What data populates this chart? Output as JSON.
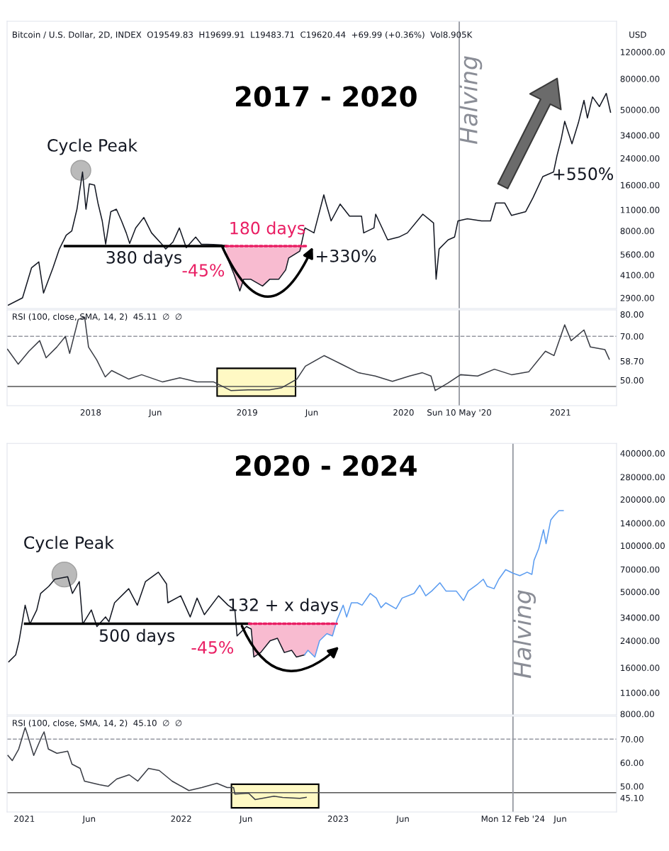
{
  "chart_data": [
    {
      "type": "line",
      "title": "2017 - 2020",
      "subtitle": "Bitcoin / U.S. Dollar, 2D, INDEX  O19549.83  H19699.91  L19483.71  C19620.44  +69.99 (+0.36%)  Vol8.905K",
      "ylabel": "USD",
      "log": true,
      "tick_labels": "y",
      "xlim": [
        "2017-06-20",
        "2021-05-12"
      ],
      "ylim": [
        2470,
        191000
      ],
      "yticks": [
        {
          "value": 2900,
          "label": "2900.00"
        },
        {
          "value": 4100,
          "label": "4100.00"
        },
        {
          "value": 5600,
          "label": "5600.00"
        },
        {
          "value": 8000,
          "label": "8000.00"
        },
        {
          "value": 11000,
          "label": "11000.00"
        },
        {
          "value": 16000,
          "label": "16000.00"
        },
        {
          "value": 24000,
          "label": "24000.00"
        },
        {
          "value": 34000,
          "label": "34000.00"
        },
        {
          "value": 50000,
          "label": "50000.00"
        },
        {
          "value": 80000,
          "label": "80000.00"
        },
        {
          "value": 120000,
          "label": "120000.00"
        }
      ],
      "series": [
        {
          "color": "#131722",
          "x": [
            "2017-06-23",
            "2017-07-26",
            "2017-08-16",
            "2017-09-02",
            "2017-09-13",
            "2017-10-05",
            "2017-10-20",
            "2017-11-05",
            "2017-11-18",
            "2017-11-30",
            "2017-12-05",
            "2017-12-13",
            "2017-12-21",
            "2017-12-29",
            "2018-01-10",
            "2018-01-18",
            "2018-01-28",
            "2018-02-05",
            "2018-02-17",
            "2018-03-02",
            "2018-03-14",
            "2018-03-25",
            "2018-04-02",
            "2018-04-16",
            "2018-05-05",
            "2018-05-23",
            "2018-06-16",
            "2018-06-25",
            "2018-07-12",
            "2018-07-27",
            "2018-08-12",
            "2018-09-03",
            "2018-09-16",
            "2018-10-14",
            "2018-11-04",
            "2018-11-16",
            "2018-12-02",
            "2018-12-15",
            "2018-12-24",
            "2019-01-09",
            "2019-02-06",
            "2019-02-23",
            "2019-03-16",
            "2019-04-01",
            "2019-04-08",
            "2019-05-04",
            "2019-05-16",
            "2019-06-06",
            "2019-06-29",
            "2019-07-04",
            "2019-07-16",
            "2019-08-06",
            "2019-08-28",
            "2019-09-25",
            "2019-09-30",
            "2019-10-24",
            "2019-10-28",
            "2019-11-25",
            "2019-12-21",
            "2020-01-10",
            "2020-02-15",
            "2020-03-11",
            "2020-03-17",
            "2020-03-24",
            "2020-04-14",
            "2020-04-29",
            "2020-05-07",
            "2020-05-29",
            "2020-07-01",
            "2020-07-22",
            "2020-08-03",
            "2020-08-24",
            "2020-09-09",
            "2020-10-12",
            "2020-10-29",
            "2020-11-21",
            "2020-12-16",
            "2020-12-24",
            "2021-01-03",
            "2021-01-11",
            "2021-01-28",
            "2021-02-12",
            "2021-02-25",
            "2021-03-05",
            "2021-03-17",
            "2021-04-02",
            "2021-04-18",
            "2021-04-28"
          ],
          "values": [
            2600,
            2900,
            4570,
            5000,
            3120,
            4570,
            6080,
            7500,
            8000,
            11100,
            13800,
            19500,
            11100,
            16300,
            16000,
            12200,
            9300,
            6550,
            10700,
            11100,
            9300,
            7760,
            6620,
            8360,
            9800,
            7760,
            6550,
            6080,
            6760,
            8360,
            6200,
            7280,
            6550,
            6500,
            6450,
            5300,
            4110,
            3220,
            3850,
            3850,
            3470,
            3850,
            3850,
            4430,
            5300,
            5890,
            8360,
            7760,
            13800,
            12200,
            9300,
            12000,
            10000,
            10000,
            7760,
            8360,
            10300,
            6980,
            7280,
            7760,
            10300,
            9020,
            3850,
            6080,
            6980,
            7280,
            9300,
            9600,
            9300,
            9300,
            12200,
            12200,
            10100,
            10700,
            13200,
            18200,
            19500,
            24900,
            32200,
            42000,
            29900,
            41100,
            57700,
            44200,
            60800,
            52500,
            64100,
            48200
          ]
        },
        {
          "color": "#000000",
          "x": [
            "2017-11-02",
            "2018-11-12"
          ],
          "values": [
            6350,
            6350
          ]
        },
        {
          "color": "#e91e63",
          "line_style": "dotted",
          "x": [
            "2018-11-12",
            "2019-05-18"
          ],
          "values": [
            6350,
            6350
          ]
        }
      ],
      "ref_lines": [
        {
          "axis": "x",
          "value": "2020-05-10",
          "label": "Halving",
          "color": "#9598a1"
        }
      ],
      "annotations": [
        "Cycle Peak",
        "380 days",
        "180 days",
        "-45%",
        "+330%",
        "+550%"
      ]
    },
    {
      "type": "line",
      "subtitle": "RSI (100, close, SMA, 14, 2)  45.11  ∅  ∅",
      "xlim": [
        "2017-06-20",
        "2021-05-12"
      ],
      "ylim": [
        38.4,
        82
      ],
      "xticks": [
        {
          "value": "2018-01-01",
          "label": "2018"
        },
        {
          "value": "2018-06-01",
          "label": "Jun"
        },
        {
          "value": "2019-01-01",
          "label": "2019"
        },
        {
          "value": "2019-06-01",
          "label": "Jun"
        },
        {
          "value": "2020-01-01",
          "label": "2020"
        },
        {
          "value": "2020-05-10",
          "label": "Sun 10 May '20"
        },
        {
          "value": "2021-01-01",
          "label": "2021"
        }
      ],
      "yticks": [
        {
          "value": 50,
          "label": "50.00"
        },
        {
          "value": 58.7,
          "label": "58.70"
        },
        {
          "value": 70,
          "label": "70.00"
        },
        {
          "value": 80,
          "label": "80.00"
        }
      ],
      "series": [
        {
          "color": "#3a3d45",
          "x": [
            "2017-06-21",
            "2017-07-16",
            "2017-08-10",
            "2017-09-04",
            "2017-09-19",
            "2017-10-14",
            "2017-11-03",
            "2017-11-13",
            "2017-12-03",
            "2017-12-18",
            "2017-12-27",
            "2018-01-15",
            "2018-02-04",
            "2018-02-19",
            "2018-03-31",
            "2018-04-30",
            "2018-06-18",
            "2018-07-28",
            "2018-09-06",
            "2018-10-15",
            "2018-11-24",
            "2019-01-03",
            "2019-02-22",
            "2019-03-23",
            "2019-04-27",
            "2019-05-17",
            "2019-06-30",
            "2019-08-09",
            "2019-09-18",
            "2019-10-27",
            "2019-12-06",
            "2020-01-15",
            "2020-02-14",
            "2020-03-05",
            "2020-03-15",
            "2020-04-13",
            "2020-05-13",
            "2020-06-22",
            "2020-07-31",
            "2020-09-09",
            "2020-10-19",
            "2020-11-27",
            "2020-12-17",
            "2021-01-11",
            "2021-01-26",
            "2021-02-25",
            "2021-03-12",
            "2021-04-15",
            "2021-04-25"
          ],
          "values": [
            64.1,
            57.3,
            63.2,
            68,
            60.2,
            65.1,
            69.9,
            62.2,
            77.7,
            78.7,
            65.1,
            59.3,
            51.5,
            54.4,
            50.5,
            52.5,
            49.2,
            51.1,
            49.2,
            49.2,
            45.3,
            45.6,
            45.6,
            46.6,
            50.5,
            56.4,
            61.2,
            57.3,
            53.4,
            51.9,
            49.5,
            51.9,
            53.4,
            51.9,
            45.3,
            48.6,
            52.5,
            51.9,
            55,
            52.5,
            53.8,
            63.2,
            61.2,
            75.2,
            68,
            72.9,
            65.1,
            63.9,
            59.6
          ]
        }
      ],
      "ref_lines": [
        {
          "axis": "y",
          "value": 70,
          "color": "#9598a1",
          "line_style": "dashed"
        },
        {
          "axis": "y",
          "value": 47.1,
          "color": "#555555",
          "line_style": "solid"
        },
        {
          "axis": "x",
          "value": "2020-05-10",
          "color": "#9598a1",
          "line_style": "solid"
        }
      ],
      "bands": [
        {
          "axis": "x",
          "from": "2018-10-23",
          "to": "2019-04-24",
          "color": "#fff9c4"
        }
      ]
    },
    {
      "type": "line",
      "title": "2020 - 2024",
      "log": true,
      "tick_labels": "y",
      "xlim": [
        "2020-11-22",
        "2024-10-10"
      ],
      "ylim": [
        7890,
        464000
      ],
      "yticks": [
        {
          "value": 8000,
          "label": "8000.00"
        },
        {
          "value": 11000,
          "label": "11000.00"
        },
        {
          "value": 16000,
          "label": "16000.00"
        },
        {
          "value": 24000,
          "label": "24000.00"
        },
        {
          "value": 34000,
          "label": "34000.00"
        },
        {
          "value": 50000,
          "label": "50000.00"
        },
        {
          "value": 70000,
          "label": "70000.00"
        },
        {
          "value": 100000,
          "label": "100000.00"
        },
        {
          "value": 140000,
          "label": "140000.00"
        },
        {
          "value": 200000,
          "label": "200000.00"
        },
        {
          "value": 280000,
          "label": "280000.00"
        },
        {
          "value": 400000,
          "label": "400000.00"
        }
      ],
      "series": [
        {
          "color": "#131722",
          "x": [
            "2020-11-26",
            "2020-12-12",
            "2020-12-20",
            "2021-01-03",
            "2021-01-14",
            "2021-01-30",
            "2021-02-08",
            "2021-02-27",
            "2021-03-13",
            "2021-04-12",
            "2021-04-23",
            "2021-05-09",
            "2021-05-17",
            "2021-06-06",
            "2021-06-19",
            "2021-07-09",
            "2021-07-17",
            "2021-07-30",
            "2021-09-01",
            "2021-09-21",
            "2021-10-10",
            "2021-11-09",
            "2021-11-28",
            "2021-12-01",
            "2021-12-31",
            "2022-01-22",
            "2022-02-07",
            "2022-02-24",
            "2022-03-29",
            "2022-04-20",
            "2022-05-06",
            "2022-05-11",
            "2022-06-02",
            "2022-06-13",
            "2022-06-19",
            "2022-07-05",
            "2022-07-27",
            "2022-08-13",
            "2022-08-29",
            "2022-09-15",
            "2022-09-26",
            "2022-10-15"
          ],
          "values": [
            17500,
            19400,
            24000,
            40900,
            30800,
            38100,
            48800,
            54300,
            60400,
            62700,
            48800,
            58300,
            30800,
            38100,
            29700,
            34300,
            31900,
            42400,
            52400,
            40900,
            58300,
            67100,
            56200,
            42400,
            47100,
            34300,
            45500,
            35500,
            47100,
            40900,
            38100,
            25800,
            29700,
            28600,
            18800,
            20100,
            24000,
            24900,
            20100,
            20800,
            18800,
            19400
          ]
        },
        {
          "color": "#5b9cf0",
          "x": [
            "2022-10-15",
            "2022-10-23",
            "2022-11-08",
            "2022-11-19",
            "2022-12-06",
            "2022-12-19",
            "2022-12-30",
            "2023-01-13",
            "2023-01-21",
            "2023-02-01",
            "2023-02-15",
            "2023-02-26",
            "2023-03-17",
            "2023-03-31",
            "2023-04-11",
            "2023-04-22",
            "2023-05-16",
            "2023-05-30",
            "2023-06-27",
            "2023-07-10",
            "2023-07-24",
            "2023-08-07",
            "2023-08-26",
            "2023-09-09",
            "2023-10-03",
            "2023-10-20",
            "2023-10-31",
            "2023-11-22",
            "2023-12-05",
            "2023-12-14",
            "2023-12-30",
            "2024-01-10",
            "2024-01-26",
            "2024-02-12",
            "2024-02-28",
            "2024-03-16",
            "2024-03-27",
            "2024-04-01",
            "2024-04-12",
            "2024-04-23",
            "2024-04-29",
            "2024-05-10",
            "2024-05-18",
            "2024-05-29",
            "2024-06-08"
          ],
          "values": [
            19400,
            20800,
            18800,
            24000,
            26700,
            25800,
            33000,
            40900,
            34300,
            42400,
            42400,
            40900,
            48800,
            45500,
            39400,
            42400,
            38800,
            45500,
            48800,
            55200,
            47100,
            50600,
            57300,
            50600,
            50600,
            43900,
            50600,
            56200,
            60400,
            54300,
            52400,
            60400,
            69700,
            66100,
            63700,
            67100,
            64900,
            80200,
            95700,
            127000,
            103000,
            147000,
            157000,
            169000,
            169000
          ]
        },
        {
          "color": "#000000",
          "x": [
            "2021-01-03",
            "2022-06-08"
          ],
          "values": [
            31000,
            31000
          ]
        },
        {
          "color": "#e91e63",
          "line_style": "dotted",
          "x": [
            "2022-06-08",
            "2022-12-29"
          ],
          "values": [
            31000,
            31000
          ]
        }
      ],
      "ref_lines": [
        {
          "axis": "x",
          "value": "2024-02-12",
          "label": "Halving",
          "color": "#9598a1"
        }
      ],
      "annotations": [
        "Cycle Peak",
        "500 days",
        "132 + x days",
        "-45%"
      ]
    },
    {
      "type": "line",
      "subtitle": "RSI (100, close, SMA, 14, 2)  45.10  ∅  ∅",
      "xlim": [
        "2020-11-22",
        "2024-10-10"
      ],
      "ylim": [
        39.1,
        79.7
      ],
      "xticks": [
        {
          "value": "2021-01-01",
          "label": "2021"
        },
        {
          "value": "2021-06-01",
          "label": "Jun"
        },
        {
          "value": "2022-01-01",
          "label": "2022"
        },
        {
          "value": "2022-06-01",
          "label": "Jun"
        },
        {
          "value": "2023-01-01",
          "label": "2023"
        },
        {
          "value": "2023-06-01",
          "label": "Jun"
        },
        {
          "value": "2024-02-12",
          "label": "Mon 12 Feb '24"
        },
        {
          "value": "2024-06-01",
          "label": "Jun"
        }
      ],
      "yticks": [
        {
          "value": 45.1,
          "label": "45.10"
        },
        {
          "value": 50,
          "label": "50.00"
        },
        {
          "value": 60,
          "label": "60.00"
        },
        {
          "value": 70,
          "label": "70.00"
        }
      ],
      "series": [
        {
          "color": "#3a3d45",
          "x": [
            "2020-11-24",
            "2020-12-04",
            "2020-12-19",
            "2021-01-03",
            "2021-01-08",
            "2021-01-23",
            "2021-02-11",
            "2021-02-16",
            "2021-02-26",
            "2021-03-18",
            "2021-04-12",
            "2021-04-22",
            "2021-05-11",
            "2021-05-21",
            "2021-06-25",
            "2021-07-15",
            "2021-08-04",
            "2021-09-02",
            "2021-09-22",
            "2021-10-17",
            "2021-11-11",
            "2021-12-11",
            "2022-01-19",
            "2022-02-18",
            "2022-03-25",
            "2022-04-18",
            "2022-05-03",
            "2022-05-06",
            "2022-06-07",
            "2022-06-22",
            "2022-08-05",
            "2022-08-25",
            "2022-10-04",
            "2022-10-19"
          ],
          "values": [
            63.1,
            60.9,
            65.8,
            74.9,
            72.2,
            63.1,
            71.3,
            73.1,
            65.8,
            64,
            64.9,
            59.4,
            57.6,
            52.2,
            50.7,
            50,
            53.1,
            54.9,
            52.2,
            57.6,
            56.7,
            52.2,
            48.2,
            49.5,
            51.3,
            49.5,
            49.5,
            46.7,
            47.1,
            44.4,
            45.8,
            45.3,
            44.9,
            45.3
          ]
        }
      ],
      "ref_lines": [
        {
          "axis": "y",
          "value": 70,
          "color": "#9598a1",
          "line_style": "dashed"
        },
        {
          "axis": "y",
          "value": 47.3,
          "color": "#555555",
          "line_style": "solid"
        },
        {
          "axis": "x",
          "value": "2024-02-12",
          "color": "#9598a1",
          "line_style": "solid"
        }
      ],
      "bands": [
        {
          "axis": "x",
          "from": "2022-04-28",
          "to": "2022-11-17",
          "color": "#fff9c4"
        }
      ]
    }
  ]
}
